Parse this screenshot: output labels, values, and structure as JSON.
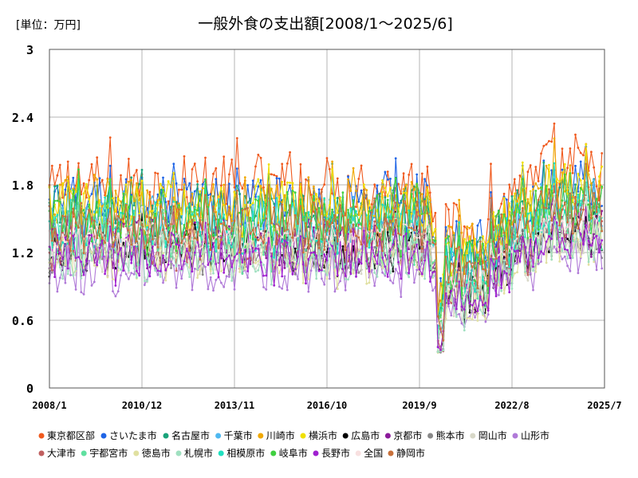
{
  "chart_data": {
    "type": "line",
    "title": "一般外食の支出額[2008/1～2025/6]",
    "unit_label": "[単位：万円]",
    "x_start": "2008/1",
    "x_end": "2025/7",
    "x_tick_labels": [
      "2008/1",
      "2010/12",
      "2013/11",
      "2016/10",
      "2019/9",
      "2022/8",
      "2025/7"
    ],
    "y_tick_labels": [
      "0",
      "0.6",
      "1.2",
      "1.8",
      "2.4",
      "3"
    ],
    "ylim": [
      0,
      3
    ],
    "grid": true,
    "legend_position": "bottom",
    "series": [
      {
        "name": "東京都区部",
        "color": "#f05a1e",
        "level": 1.78,
        "spread": 0.22,
        "noise": 0.28
      },
      {
        "name": "さいたま市",
        "color": "#1e64e6",
        "level": 1.62,
        "spread": 0.2,
        "noise": 0.26
      },
      {
        "name": "名古屋市",
        "color": "#1aa37a",
        "level": 1.55,
        "spread": 0.2,
        "noise": 0.27
      },
      {
        "name": "千葉市",
        "color": "#4fb8f0",
        "level": 1.5,
        "spread": 0.18,
        "noise": 0.25
      },
      {
        "name": "川崎市",
        "color": "#f0a800",
        "level": 1.62,
        "spread": 0.2,
        "noise": 0.27
      },
      {
        "name": "横浜市",
        "color": "#f0e000",
        "level": 1.6,
        "spread": 0.18,
        "noise": 0.24
      },
      {
        "name": "広島市",
        "color": "#000000",
        "level": 1.22,
        "spread": 0.16,
        "noise": 0.2
      },
      {
        "name": "京都市",
        "color": "#8b1a9a",
        "level": 1.28,
        "spread": 0.18,
        "noise": 0.22
      },
      {
        "name": "熊本市",
        "color": "#888888",
        "level": 1.2,
        "spread": 0.16,
        "noise": 0.2
      },
      {
        "name": "岡山市",
        "color": "#d8d8c8",
        "level": 1.2,
        "spread": 0.15,
        "noise": 0.2
      },
      {
        "name": "山形市",
        "color": "#b07ad8",
        "level": 1.05,
        "spread": 0.15,
        "noise": 0.2
      },
      {
        "name": "大津市",
        "color": "#c06060",
        "level": 1.3,
        "spread": 0.18,
        "noise": 0.22
      },
      {
        "name": "宇都宮市",
        "color": "#60e0a0",
        "level": 1.3,
        "spread": 0.16,
        "noise": 0.22
      },
      {
        "name": "徳島市",
        "color": "#e0e0a0",
        "level": 1.15,
        "spread": 0.15,
        "noise": 0.2
      },
      {
        "name": "札幌市",
        "color": "#a0e0c0",
        "level": 1.15,
        "spread": 0.15,
        "noise": 0.2
      },
      {
        "name": "相模原市",
        "color": "#20e0c0",
        "level": 1.45,
        "spread": 0.18,
        "noise": 0.24
      },
      {
        "name": "岐阜市",
        "color": "#40d040",
        "level": 1.5,
        "spread": 0.2,
        "noise": 0.26
      },
      {
        "name": "長野市",
        "color": "#a020d0",
        "level": 1.18,
        "spread": 0.16,
        "noise": 0.2
      },
      {
        "name": "全国",
        "color": "#f8e0e0",
        "level": 1.35,
        "spread": 0.12,
        "noise": 0.12
      },
      {
        "name": "静岡市",
        "color": "#c8703a",
        "level": 1.45,
        "spread": 0.18,
        "noise": 0.24
      }
    ]
  }
}
